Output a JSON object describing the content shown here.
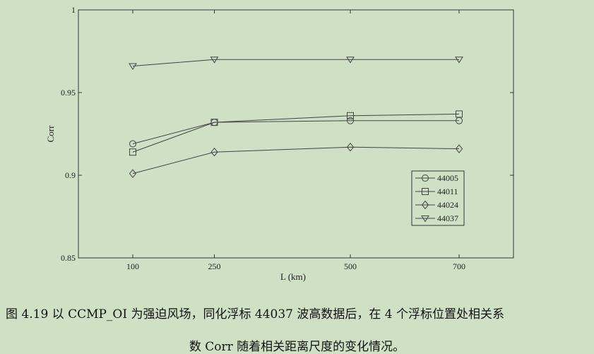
{
  "chart_data": {
    "type": "line",
    "xlabel": "L (km)",
    "ylabel": "Corr",
    "x": [
      100,
      250,
      500,
      700
    ],
    "x_tick_labels": [
      "100",
      "250",
      "500",
      "700"
    ],
    "xlim": [
      0,
      800
    ],
    "ylim": [
      0.85,
      1
    ],
    "y_tick_values": [
      0.85,
      0.9,
      0.95,
      1
    ],
    "y_tick_labels": [
      "0.85",
      "0.9",
      "0.95",
      "1"
    ],
    "grid": false,
    "legend_position": "lower-right",
    "line_color": "#444444",
    "series": [
      {
        "name": "44005",
        "marker": "circle",
        "values": [
          0.919,
          0.932,
          0.933,
          0.933
        ]
      },
      {
        "name": "44011",
        "marker": "square",
        "values": [
          0.914,
          0.932,
          0.936,
          0.937
        ]
      },
      {
        "name": "44024",
        "marker": "diamond",
        "values": [
          0.901,
          0.914,
          0.917,
          0.916
        ]
      },
      {
        "name": "44037",
        "marker": "triangle-down",
        "values": [
          0.966,
          0.97,
          0.97,
          0.97
        ]
      }
    ]
  },
  "caption": {
    "line1": "图 4.19  以 CCMP_OI 为强迫风场，同化浮标 44037 波高数据后，在 4 个浮标位置处相关系",
    "line2": "数 Corr 随着相关距离尺度的变化情况。"
  },
  "colors": {
    "background": "#cfe0c4",
    "axis": "#333333",
    "series": "#444444"
  }
}
